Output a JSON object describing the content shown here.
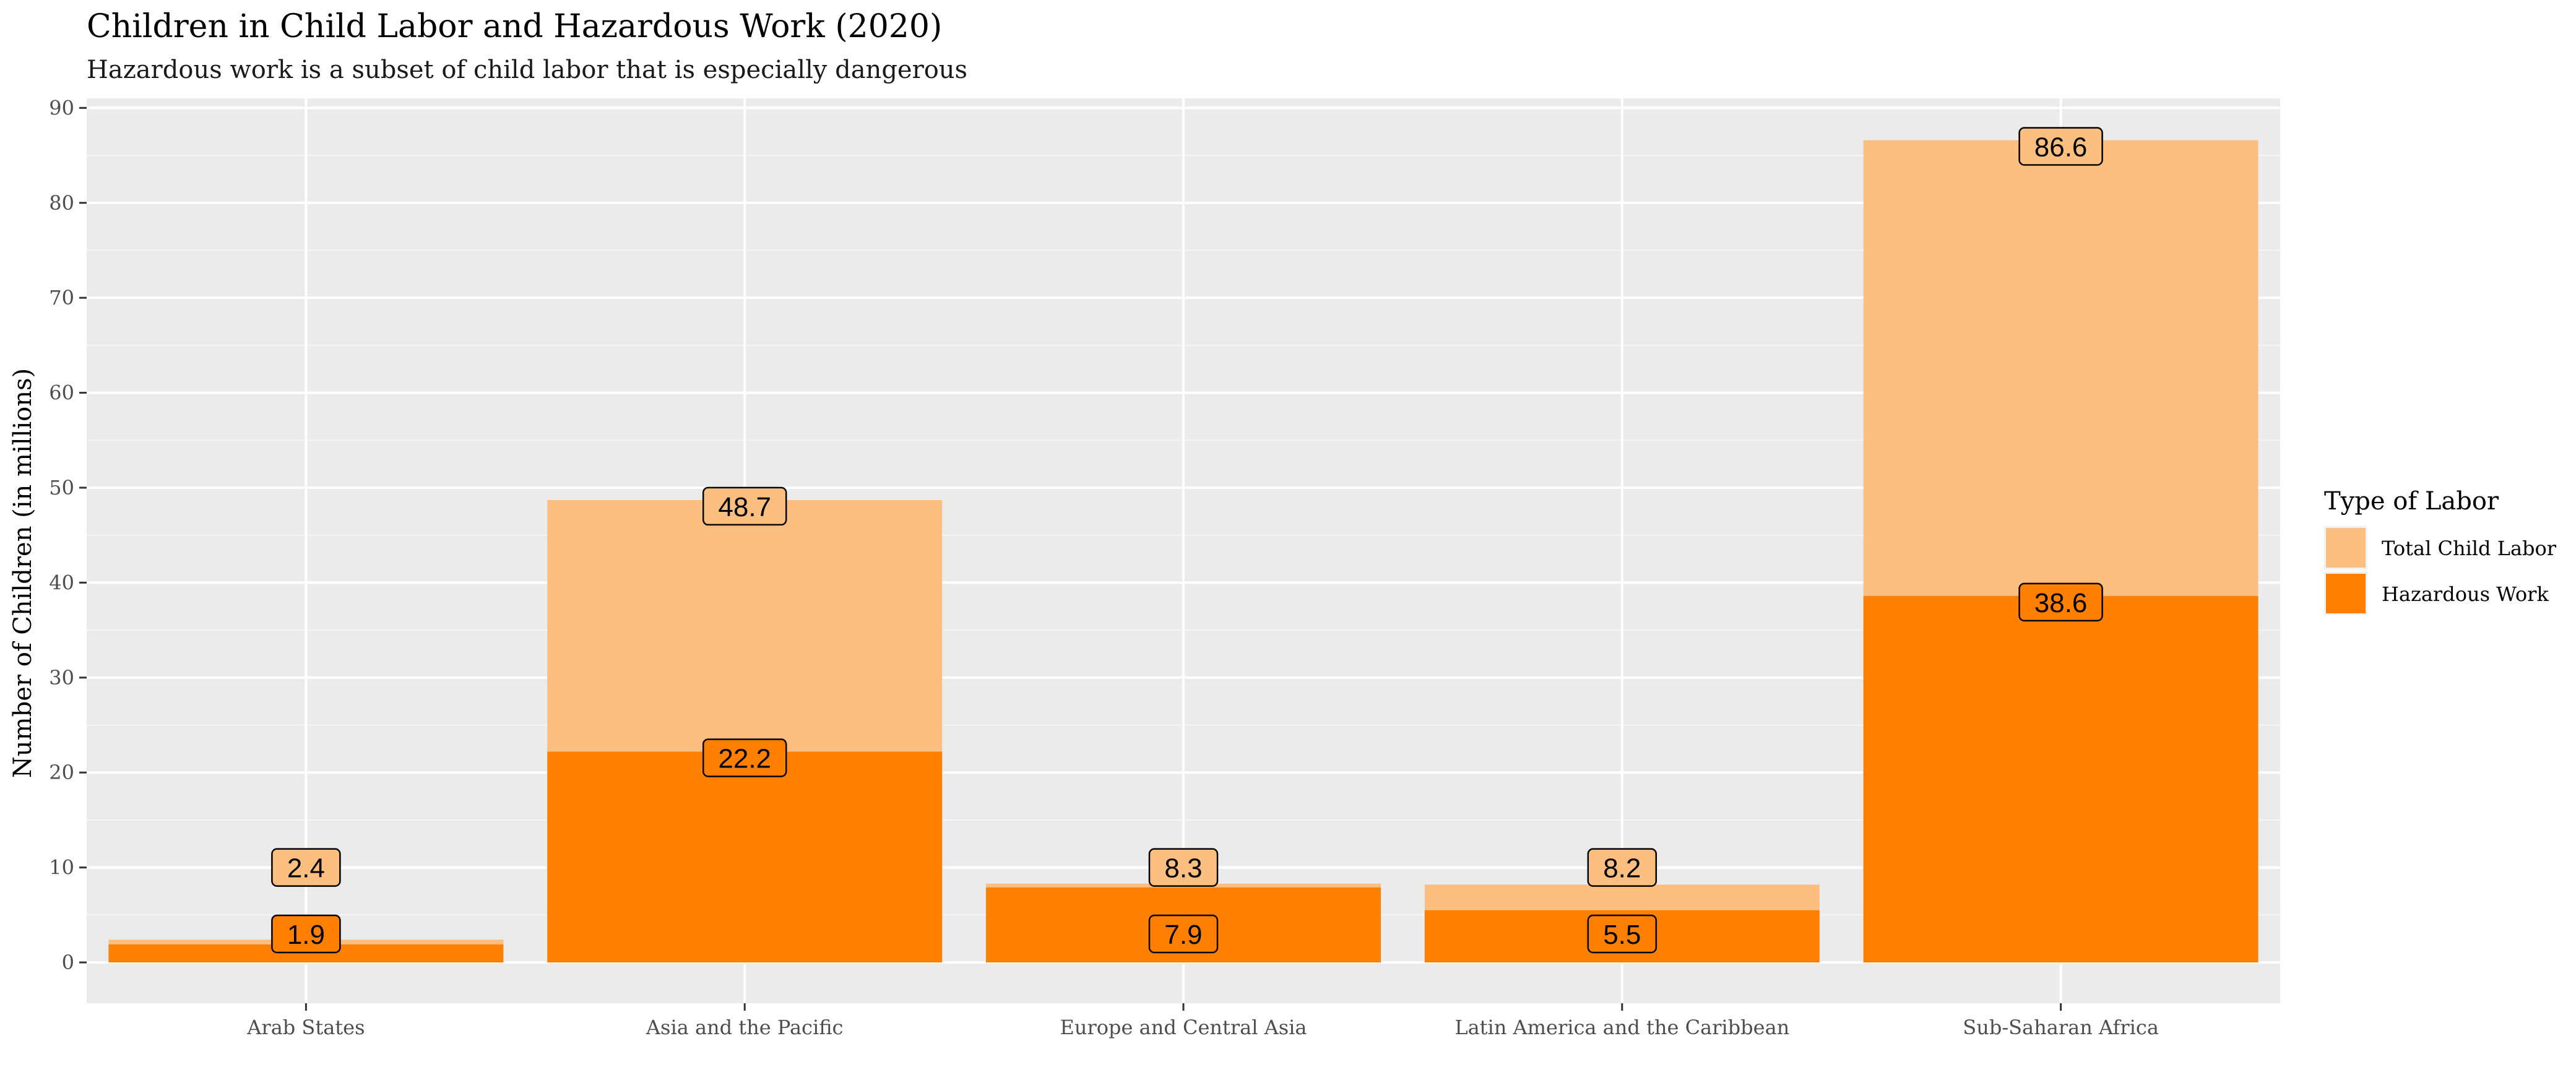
{
  "chart_data": {
    "type": "bar",
    "title": "Children in Child Labor and Hazardous Work (2020)",
    "subtitle": "Hazardous work is a subset of child labor that is especially dangerous",
    "xlabel": "",
    "ylabel": "Number of Children (in millions)",
    "ylim": [
      -4.3,
      91
    ],
    "yticks": [
      0,
      10,
      20,
      30,
      40,
      50,
      60,
      70,
      80,
      90
    ],
    "grid": true,
    "legend_placement": "right",
    "legend_title": "Type of Labor",
    "categories": [
      "Arab States",
      "Asia and the Pacific",
      "Europe and Central Asia",
      "Latin America and the Caribbean",
      "Sub-Saharan Africa"
    ],
    "series": [
      {
        "name": "Total Child Labor",
        "color": "#FDBF80",
        "values": [
          2.4,
          48.7,
          8.3,
          8.2,
          86.6
        ]
      },
      {
        "name": "Hazardous Work",
        "color": "#FF8000",
        "values": [
          1.9,
          22.2,
          7.9,
          5.5,
          38.6
        ]
      }
    ]
  }
}
